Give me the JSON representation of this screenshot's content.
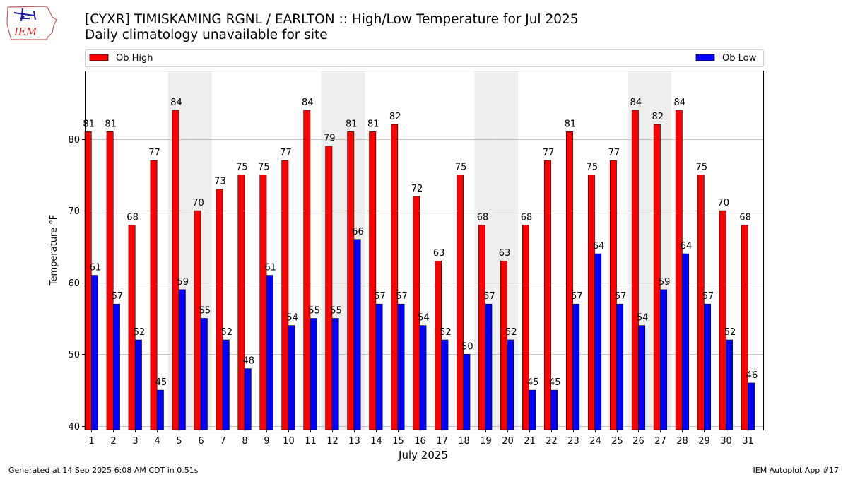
{
  "header": {
    "title_line1": "[CYXR] TIMISKAMING RGNL / EARLTON :: High/Low Temperature for Jul 2025",
    "title_line2": "Daily climatology unavailable for site"
  },
  "logo": {
    "text": "IEM"
  },
  "footer": {
    "generated": "Generated at 14 Sep 2025 6:08 AM CDT in 0.51s",
    "app": "IEM Autoplot App #17"
  },
  "colors": {
    "high": "#ff0000",
    "low": "#0000ff",
    "weekend": "#eeeeee",
    "grid": "#b0b0b0"
  },
  "chart_data": {
    "type": "bar",
    "title": "[CYXR] TIMISKAMING RGNL / EARLTON :: High/Low Temperature for Jul 2025",
    "subtitle": "Daily climatology unavailable for site",
    "xlabel": "July 2025",
    "ylabel": "Temperature °F",
    "ylim": [
      39.5,
      89.5
    ],
    "yticks": [
      40,
      50,
      60,
      70,
      80
    ],
    "grid": true,
    "legend_position": "top",
    "categories": [
      "1",
      "2",
      "3",
      "4",
      "5",
      "6",
      "7",
      "8",
      "9",
      "10",
      "11",
      "12",
      "13",
      "14",
      "15",
      "16",
      "17",
      "18",
      "19",
      "20",
      "21",
      "22",
      "23",
      "24",
      "25",
      "26",
      "27",
      "28",
      "29",
      "30",
      "31"
    ],
    "weekend_days": [
      5,
      6,
      12,
      13,
      19,
      20,
      26,
      27
    ],
    "series": [
      {
        "name": "Ob High",
        "color": "#ff0000",
        "values": [
          81,
          81,
          68,
          77,
          84,
          70,
          73,
          75,
          75,
          77,
          84,
          79,
          81,
          81,
          82,
          72,
          63,
          75,
          68,
          63,
          68,
          77,
          81,
          75,
          77,
          84,
          82,
          84,
          75,
          70,
          68
        ]
      },
      {
        "name": "Ob Low",
        "color": "#0000ff",
        "values": [
          61,
          57,
          52,
          45,
          59,
          55,
          52,
          48,
          61,
          54,
          55,
          55,
          66,
          57,
          57,
          54,
          52,
          50,
          57,
          52,
          45,
          45,
          57,
          64,
          57,
          54,
          59,
          64,
          57,
          52,
          46
        ]
      }
    ]
  }
}
